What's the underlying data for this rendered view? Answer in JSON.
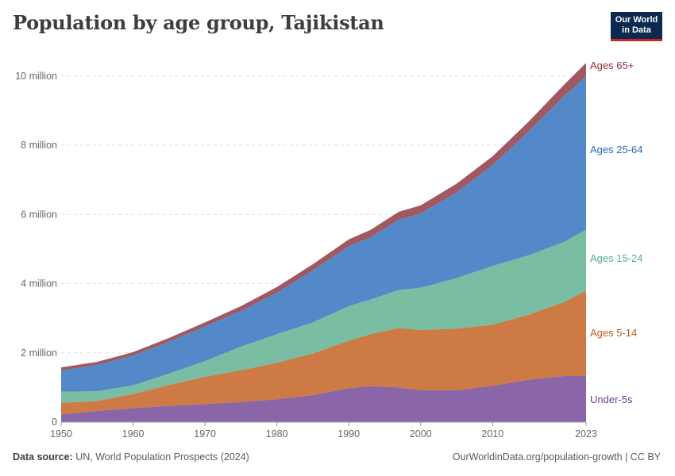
{
  "header": {
    "title": "Population by age group, Tajikistan",
    "logo_line1": "Our World",
    "logo_line2": "in Data"
  },
  "footer": {
    "source_label": "Data source:",
    "source_text": "UN, World Population Prospects (2024)",
    "url_text": "OurWorldinData.org/population-growth | CC BY"
  },
  "chart_data": {
    "type": "area",
    "stacked": true,
    "title": "Population by age group, Tajikistan",
    "xlim": [
      1950,
      2023
    ],
    "ylim": [
      0,
      10500000
    ],
    "x_ticks": [
      1950,
      1960,
      1970,
      1980,
      1990,
      2000,
      2010,
      2023
    ],
    "y_ticks": [
      {
        "value": 0,
        "label": "0"
      },
      {
        "value": 2000000,
        "label": "2 million"
      },
      {
        "value": 4000000,
        "label": "4 million"
      },
      {
        "value": 6000000,
        "label": "6 million"
      },
      {
        "value": 8000000,
        "label": "8 million"
      },
      {
        "value": 10000000,
        "label": "10 million"
      }
    ],
    "grid": "horizontal dashed",
    "legend": "right, inline labels",
    "x": [
      1950,
      1955,
      1960,
      1965,
      1970,
      1975,
      1980,
      1985,
      1990,
      1993,
      1997,
      2000,
      2005,
      2010,
      2015,
      2020,
      2023
    ],
    "series": [
      {
        "name": "Under-5s",
        "color": "#6d3e91",
        "values": [
          220000,
          320000,
          400000,
          470000,
          520000,
          580000,
          660000,
          780000,
          980000,
          1040000,
          1000000,
          920000,
          920000,
          1050000,
          1220000,
          1330000,
          1330000
        ]
      },
      {
        "name": "Ages 5-14",
        "color": "#c05917",
        "values": [
          330000,
          290000,
          410000,
          600000,
          790000,
          920000,
          1050000,
          1200000,
          1370000,
          1500000,
          1720000,
          1740000,
          1780000,
          1760000,
          1880000,
          2140000,
          2470000
        ]
      },
      {
        "name": "Ages 15-24",
        "color": "#58ac8c",
        "values": [
          330000,
          280000,
          250000,
          330000,
          450000,
          680000,
          830000,
          900000,
          1000000,
          1000000,
          1100000,
          1220000,
          1460000,
          1700000,
          1720000,
          1740000,
          1760000
        ]
      },
      {
        "name": "Ages 25-64",
        "color": "#286bbb",
        "values": [
          610000,
          760000,
          860000,
          920000,
          1000000,
          1030000,
          1200000,
          1500000,
          1730000,
          1800000,
          2030000,
          2140000,
          2480000,
          2910000,
          3580000,
          4220000,
          4440000
        ]
      },
      {
        "name": "Ages 65+",
        "color": "#883039",
        "values": [
          90000,
          90000,
          100000,
          110000,
          120000,
          140000,
          160000,
          180000,
          200000,
          210000,
          230000,
          240000,
          250000,
          260000,
          280000,
          330000,
          380000
        ]
      }
    ]
  }
}
